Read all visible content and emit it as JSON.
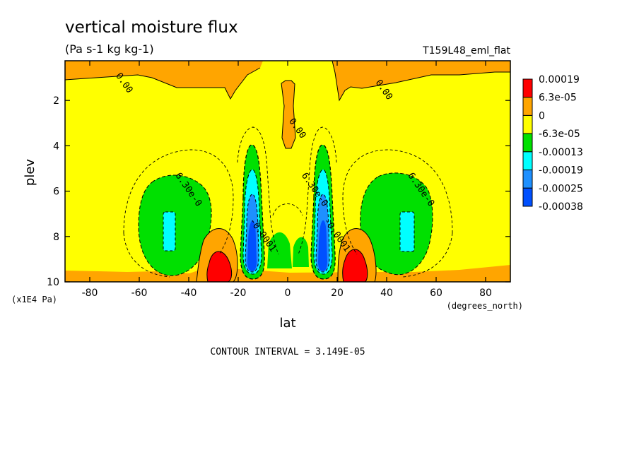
{
  "chart_data": {
    "type": "heatmap",
    "title": "vertical moisture flux",
    "subtitle": "(Pa s-1 kg kg-1)",
    "dataset_label": "T159L48_eml_flat",
    "xlabel": "lat",
    "xunits": "(degrees_north)",
    "ylabel": "plev",
    "yunits": "(x1E4 Pa)",
    "footer": "CONTOUR INTERVAL = 3.149E-05",
    "xlim": [
      -90,
      90
    ],
    "ylim": [
      10,
      0.25
    ],
    "xticks": [
      -80,
      -60,
      -40,
      -20,
      0,
      20,
      40,
      60,
      80
    ],
    "yticks": [
      2,
      4,
      6,
      8,
      10
    ],
    "colorbar": {
      "levels": [
        "0.00019",
        "6.3e-05",
        "0",
        "-6.3e-05",
        "-0.00013",
        "-0.00019",
        "-0.00025",
        "-0.00038"
      ],
      "colors": [
        "#ff0000",
        "#ffa500",
        "#ffff00",
        "#00e000",
        "#00ffff",
        "#1e90ff",
        "#0050ff"
      ]
    },
    "contour_labels": [
      {
        "text": "0.00",
        "lat": -67,
        "plev": 1.3
      },
      {
        "text": "0.00",
        "lat": 38,
        "plev": 1.6
      },
      {
        "text": "0.00",
        "lat": 3,
        "plev": 3.3
      },
      {
        "text": "6.30e-0",
        "lat": -41,
        "plev": 6.0
      },
      {
        "text": "6.30e-0",
        "lat": 10,
        "plev": 6.0
      },
      {
        "text": "6.30e-0",
        "lat": 53,
        "plev": 6.0
      },
      {
        "text": "-0.0001",
        "lat": -11,
        "plev": 8.0
      },
      {
        "text": "-0.0001",
        "lat": 19,
        "plev": 8.0
      }
    ]
  }
}
